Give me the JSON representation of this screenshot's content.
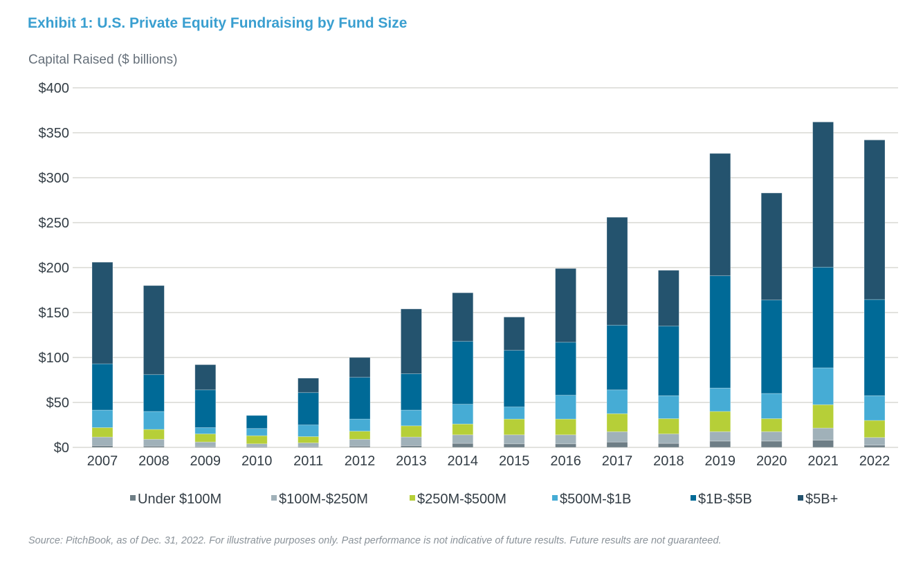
{
  "chart_data": {
    "type": "bar",
    "stacked": true,
    "title": "Exhibit 1: U.S. Private Equity Fundraising by Fund Size",
    "ylabel": "Capital Raised ($ billions)",
    "xlabel": "",
    "ylim": [
      0,
      400
    ],
    "yticks": [
      "$0",
      "$50",
      "$100",
      "$150",
      "$200",
      "$250",
      "$300",
      "$350",
      "$400"
    ],
    "ytick_values": [
      0,
      50,
      100,
      150,
      200,
      250,
      300,
      350,
      400
    ],
    "grid": true,
    "legend_position": "bottom",
    "categories": [
      "2007",
      "2008",
      "2009",
      "2010",
      "2011",
      "2012",
      "2013",
      "2014",
      "2015",
      "2016",
      "2017",
      "2018",
      "2019",
      "2020",
      "2021",
      "2022"
    ],
    "series": [
      {
        "name": "Under $100M",
        "color": "#6e7e86",
        "values": [
          2,
          1.5,
          1,
          1,
          1,
          1.5,
          2,
          4.5,
          4,
          4,
          6,
          4.5,
          7,
          7,
          8,
          2.5
        ]
      },
      {
        "name": "$100M-$250M",
        "color": "#a0b1b9",
        "values": [
          9.5,
          7.5,
          5,
          3,
          4,
          7.5,
          9.5,
          9.5,
          10,
          10,
          11.5,
          10.5,
          10.5,
          10.5,
          13.5,
          8.5
        ]
      },
      {
        "name": "$250M-$500M",
        "color": "#b6cf38",
        "values": [
          10.5,
          11,
          9,
          9,
          7,
          9,
          12.5,
          12,
          17.5,
          17.5,
          20,
          17,
          22.5,
          14.5,
          26,
          19
        ]
      },
      {
        "name": "$500M-$1B",
        "color": "#46acd5",
        "values": [
          19.5,
          20,
          7,
          8,
          13,
          13.5,
          17.5,
          22,
          13.5,
          26.5,
          26.5,
          25.5,
          26,
          28,
          41,
          27.5
        ]
      },
      {
        "name": "$1B-$5B",
        "color": "#006a97",
        "values": [
          51.5,
          41,
          42,
          14.5,
          36,
          46.5,
          40.5,
          70,
          63,
          59,
          72,
          77.5,
          125,
          104,
          112,
          107
        ]
      },
      {
        "name": "$5B+",
        "color": "#24536e",
        "values": [
          113,
          99,
          28,
          0,
          16,
          22,
          72,
          54,
          37,
          82,
          120,
          62,
          136,
          119,
          161.5,
          177.5
        ]
      }
    ],
    "source": "Source: PitchBook, as of Dec. 31, 2022. For illustrative purposes only. Past performance is not indicative of future results. Future results are not guaranteed."
  }
}
